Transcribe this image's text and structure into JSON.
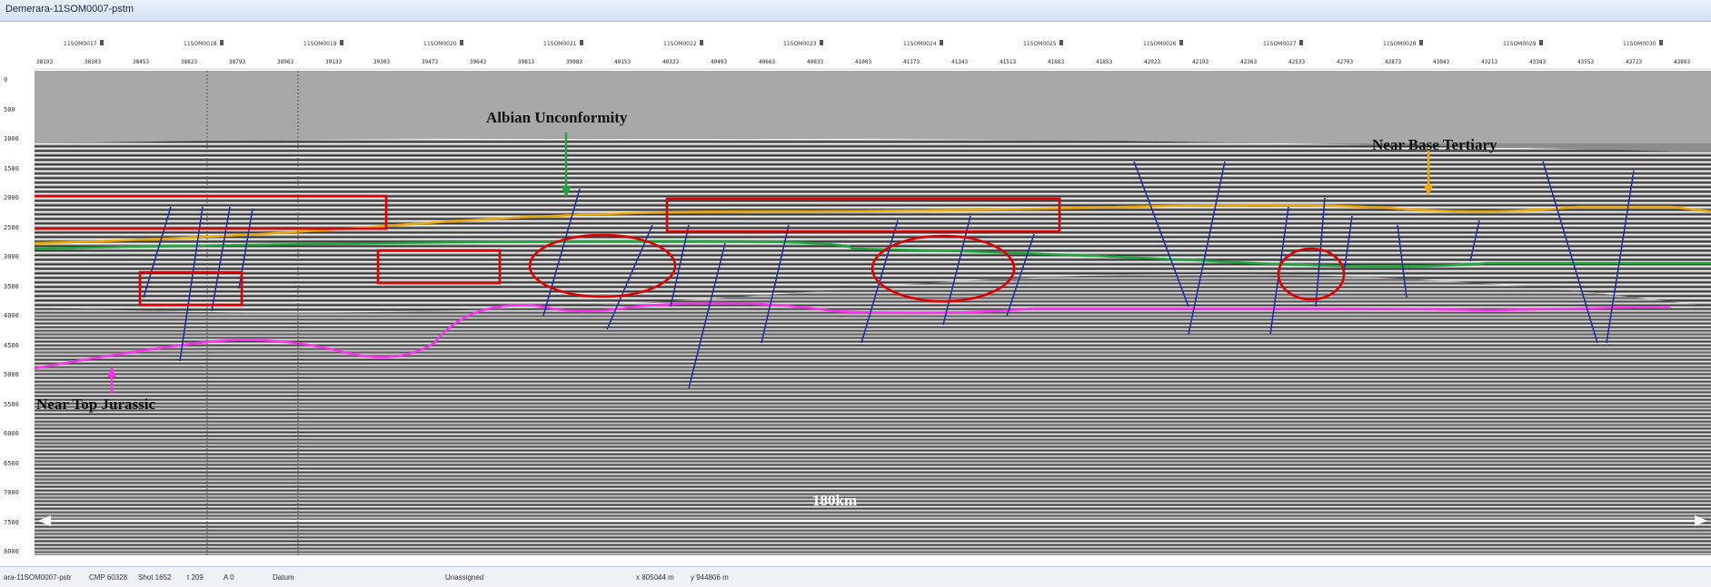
{
  "window": {
    "title": "Demerara-11SOM0007-pstm"
  },
  "header": {
    "cmp_numbers": [
      "38193",
      "38303",
      "38453",
      "38623",
      "38793",
      "38963",
      "39133",
      "39303",
      "39473",
      "39643",
      "39813",
      "39983",
      "40153",
      "40323",
      "40493",
      "40663",
      "40833",
      "41003",
      "41173",
      "41343",
      "41513",
      "41683",
      "41853",
      "42023",
      "42193",
      "42363",
      "42533",
      "42703",
      "42873",
      "43043",
      "43213",
      "43383",
      "43553",
      "43723",
      "43893"
    ],
    "line_labels": [
      "11SOM0017",
      "11SOM0018",
      "11SOM0019",
      "11SOM0020",
      "11SOM0021",
      "11SOM0022",
      "11SOM0023",
      "11SOM0024",
      "11SOM0025",
      "11SOM0026",
      "11SOM0027",
      "11SOM0028",
      "11SOM0029",
      "11SOM0030"
    ]
  },
  "y_axis": {
    "ticks": [
      "0",
      "500",
      "1000",
      "1500",
      "2000",
      "2500",
      "3000",
      "3500",
      "4000",
      "4500",
      "5000",
      "5500",
      "6000",
      "6500",
      "7000",
      "7500",
      "8000"
    ]
  },
  "annotations": {
    "albian": "Albian Unconformity",
    "base_tertiary": "Near Base Tertiary",
    "top_jurassic": "Near Top Jurassic",
    "scale": "180km"
  },
  "colors": {
    "albian": "#1aa83a",
    "base_tertiary": "#f0a800",
    "jurassic": "#ff2ef0",
    "faults": "#1a2aa8",
    "boxes": "#e00000"
  },
  "status": {
    "line": "ara-11SOM0007-pstr",
    "cmp": "CMP 60328",
    "shot": "Shot 1652",
    "t": "t  209",
    "a": "A 0",
    "datum": "Datum",
    "assign": "Unassigned",
    "x": "x 805044 m",
    "y": "y 944806 m"
  }
}
